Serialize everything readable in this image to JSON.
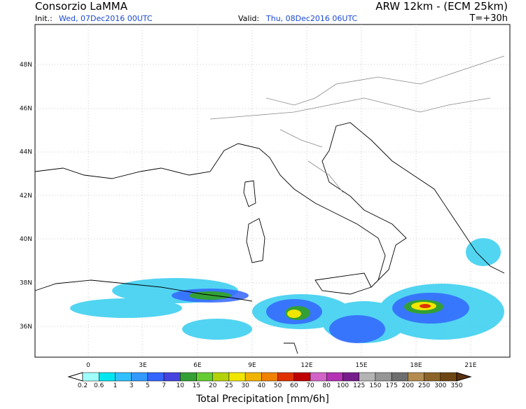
{
  "header": {
    "title": "Consorzio LaMMA",
    "model": "ARW 12km - (ECM 25km)",
    "init_label": "Init.:",
    "init_value": "Wed, 07Dec2016 00UTC",
    "valid_label": "Valid:",
    "valid_value": "Thu, 08Dec2016 06UTC",
    "forecast_step": "T=+30h"
  },
  "map": {
    "lat_labels": [
      "48N",
      "46N",
      "44N",
      "42N",
      "40N",
      "38N",
      "36N"
    ],
    "lon_labels": [
      "0",
      "3E",
      "6E",
      "9E",
      "12E",
      "15E",
      "18E",
      "21E"
    ]
  },
  "colorbar": {
    "title": "Total Precipitation [mm/6h]",
    "labels": [
      "0.2",
      "0.6",
      "1",
      "3",
      "5",
      "7",
      "10",
      "15",
      "20",
      "25",
      "30",
      "40",
      "50",
      "60",
      "70",
      "80",
      "100",
      "125",
      "150",
      "175",
      "200",
      "250",
      "300",
      "350"
    ],
    "low_color": "#ffffff",
    "high_color": "#5a3010",
    "colors": [
      "#a0fffa",
      "#00e6f0",
      "#30c0ff",
      "#3399ff",
      "#3366ff",
      "#4444e0",
      "#33a035",
      "#66cc33",
      "#b4d20a",
      "#f0e600",
      "#f0b400",
      "#f08200",
      "#e03200",
      "#c00000",
      "#d264c8",
      "#b432b4",
      "#781e8c",
      "#b4b4b4",
      "#969696",
      "#6e6e6e",
      "#b48c50",
      "#8c6428",
      "#6e4614"
    ]
  }
}
